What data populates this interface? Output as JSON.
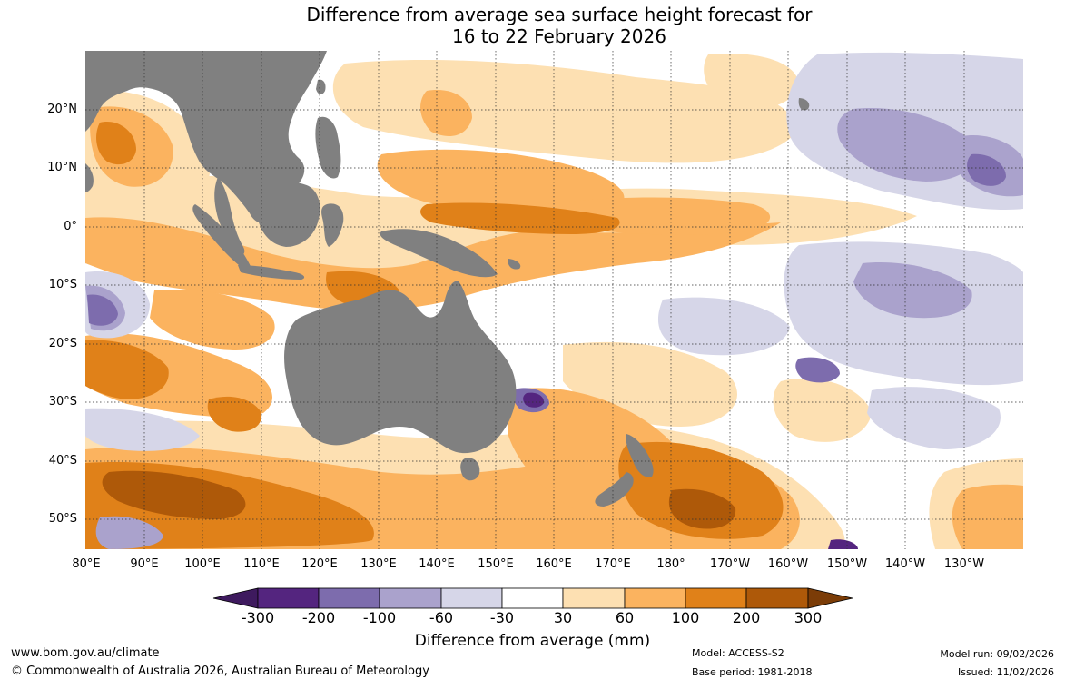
{
  "title": {
    "line1": "Difference from average sea surface height forecast for",
    "line2": "16 to 22 February 2026"
  },
  "map": {
    "lat_labels": [
      "20°N",
      "10°N",
      "0°",
      "10°S",
      "20°S",
      "30°S",
      "40°S",
      "50°S"
    ],
    "lon_labels": [
      "80°E",
      "90°E",
      "100°E",
      "110°E",
      "120°E",
      "130°E",
      "140°E",
      "150°E",
      "160°E",
      "170°E",
      "180°",
      "170°W",
      "160°W",
      "150°W",
      "140°W",
      "130°W"
    ],
    "extent": {
      "lon_min": 80,
      "lon_max": 240,
      "lat_min": -55,
      "lat_max": 30
    }
  },
  "legend": {
    "title": "Difference from average (mm)",
    "ticks": [
      "-300",
      "-200",
      "-100",
      "-60",
      "-30",
      "30",
      "60",
      "100",
      "200",
      "300"
    ],
    "colors": [
      "#3e1a5e",
      "#54257f",
      "#7d6cad",
      "#aaa2cc",
      "#d6d6e8",
      "#ffffff",
      "#fde0b2",
      "#fbb35f",
      "#e08119",
      "#ae5909",
      "#7b3c07"
    ]
  },
  "footer": {
    "website": "www.bom.gov.au/climate",
    "copyright": "© Commonwealth of Australia 2026, Australian Bureau of Meteorology",
    "model": "Model: ACCESS-S2",
    "base_period": "Base period: 1981-2018",
    "model_run": "Model run: 09/02/2026",
    "issued": "Issued: 11/02/2026"
  }
}
